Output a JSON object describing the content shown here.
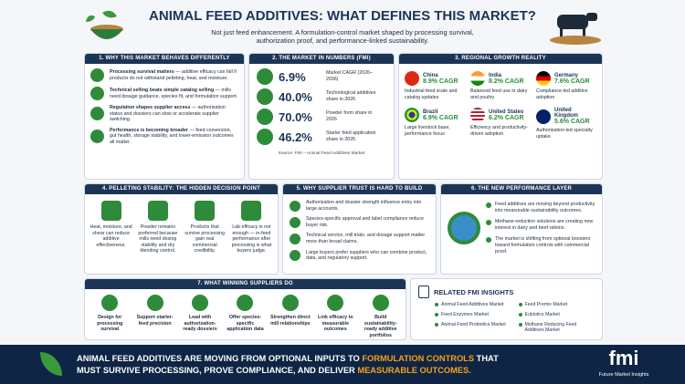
{
  "header": {
    "title": "ANIMAL FEED ADDITIVES: WHAT DEFINES THIS MARKET?",
    "subtitle": [
      "Not just feed enhancement. A formulation-control market shaped by processing survival,",
      "authorization proof, and performance-linked sustainability."
    ]
  },
  "why": {
    "title": "1. WHY THIS MARKET BEHAVES DIFFERENTLY",
    "items": [
      {
        "head": "Processing survival matters",
        "text": "— additive efficacy can fall if products do not withstand pelleting, heat, and moisture."
      },
      {
        "head": "Technical selling beats simple catalog selling",
        "text": "— mills need dosage guidance, species fit, and formulation support."
      },
      {
        "head": "Regulation shapes supplier access",
        "text": "— authorization status and dossiers can slow or accelerate supplier switching."
      },
      {
        "head": "Performance is becoming broader",
        "text": "— feed conversion, gut health, storage stability, and lower-emission outcomes all matter."
      }
    ]
  },
  "numbers": {
    "title": "2. THE MARKET IN NUMBERS (FMI)",
    "items": [
      {
        "value": "6.9%",
        "label": "Market CAGR (2026–2036)"
      },
      {
        "value": "40.0%",
        "label": "Technological additives share in 2026"
      },
      {
        "value": "70.0%",
        "label": "Powder form share in 2026"
      },
      {
        "value": "46.2%",
        "label": "Starter feed application share in 2026"
      }
    ],
    "source": "Source: FMI – Animal Feed Additives Market"
  },
  "regions": {
    "title": "3. REGIONAL GROWTH REALITY",
    "items": [
      {
        "name": "China",
        "cagr": "8.9% CAGR",
        "note": "Industrial feed scale and catalog updates"
      },
      {
        "name": "India",
        "cagr": "8.2% CAGR",
        "note": "Balanced feed use in dairy and poultry"
      },
      {
        "name": "Germany",
        "cagr": "7.6% CAGR",
        "note": "Compliance-led additive adoption"
      },
      {
        "name": "Brazil",
        "cagr": "6.9% CAGR",
        "note": "Large livestock base, performance focus"
      },
      {
        "name": "United States",
        "cagr": "6.2% CAGR",
        "note": "Efficiency and productivity-driven adoption"
      },
      {
        "name": "United Kingdom",
        "cagr": "5.6% CAGR",
        "note": "Authorization-led specialty uptake"
      }
    ]
  },
  "pelleting": {
    "title": "4. PELLETING STABILITY: THE HIDDEN DECISION POINT",
    "items": [
      "Heat, moisture, and shear can reduce additive effectiveness.",
      "Powder remains preferred because mills need dosing stability and dry blending control.",
      "Products that survive processing gain real commercial credibility.",
      "Lab efficacy is not enough — in-feed performance after processing is what buyers judge."
    ]
  },
  "trust": {
    "title": "5. WHY SUPPLIER TRUST IS HARD TO BUILD",
    "items": [
      "Authorization and dossier strength influence entry into large accounts.",
      "Species-specific approval and label compliance reduce buyer risk.",
      "Technical service, mill trials, and dosage support matter more than broad claims.",
      "Large buyers prefer suppliers who can combine product, data, and regulatory support."
    ]
  },
  "performance": {
    "title": "6. THE NEW PERFORMANCE LAYER",
    "items": [
      "Feed additives are moving beyond productivity into measurable sustainability outcomes.",
      "Methane-reduction solutions are creating new interest in dairy and beef rations.",
      "The market is shifting from optional boosters toward formulation controls with commercial proof."
    ]
  },
  "winning": {
    "title": "7. WHAT WINNING SUPPLIERS DO",
    "items": [
      "Design for processing survival",
      "Support starter-feed precision",
      "Lead with authorization-ready dossiers",
      "Offer species-specific application data",
      "Strengthen direct mill relationships",
      "Link efficacy to measurable outcomes",
      "Build sustainability-ready additive portfolios"
    ]
  },
  "related": {
    "title": "RELATED FMI INSIGHTS",
    "left": [
      "Animal Feed Additives Market",
      "Feed Enzymes Market",
      "Animal Feed Probiotics Market"
    ],
    "right": [
      "Feed Premix Market",
      "Eubiotics Market",
      "Methane Reducing Feed Additives Market"
    ]
  },
  "footer": {
    "segments": [
      {
        "text": "ANIMAL FEED ADDITIVES ARE MOVING FROM OPTIONAL INPUTS TO ",
        "highlight": false
      },
      {
        "text": "FORMULATION CONTROLS",
        "highlight": true
      },
      {
        "text": " THAT MUST SURVIVE PROCESSING, PROVE COMPLIANCE, AND DELIVER ",
        "highlight": false
      },
      {
        "text": "MEASURABLE OUTCOMES.",
        "highlight": true
      }
    ],
    "logo": "fmi",
    "logo_sub": "Future Market Insights"
  }
}
